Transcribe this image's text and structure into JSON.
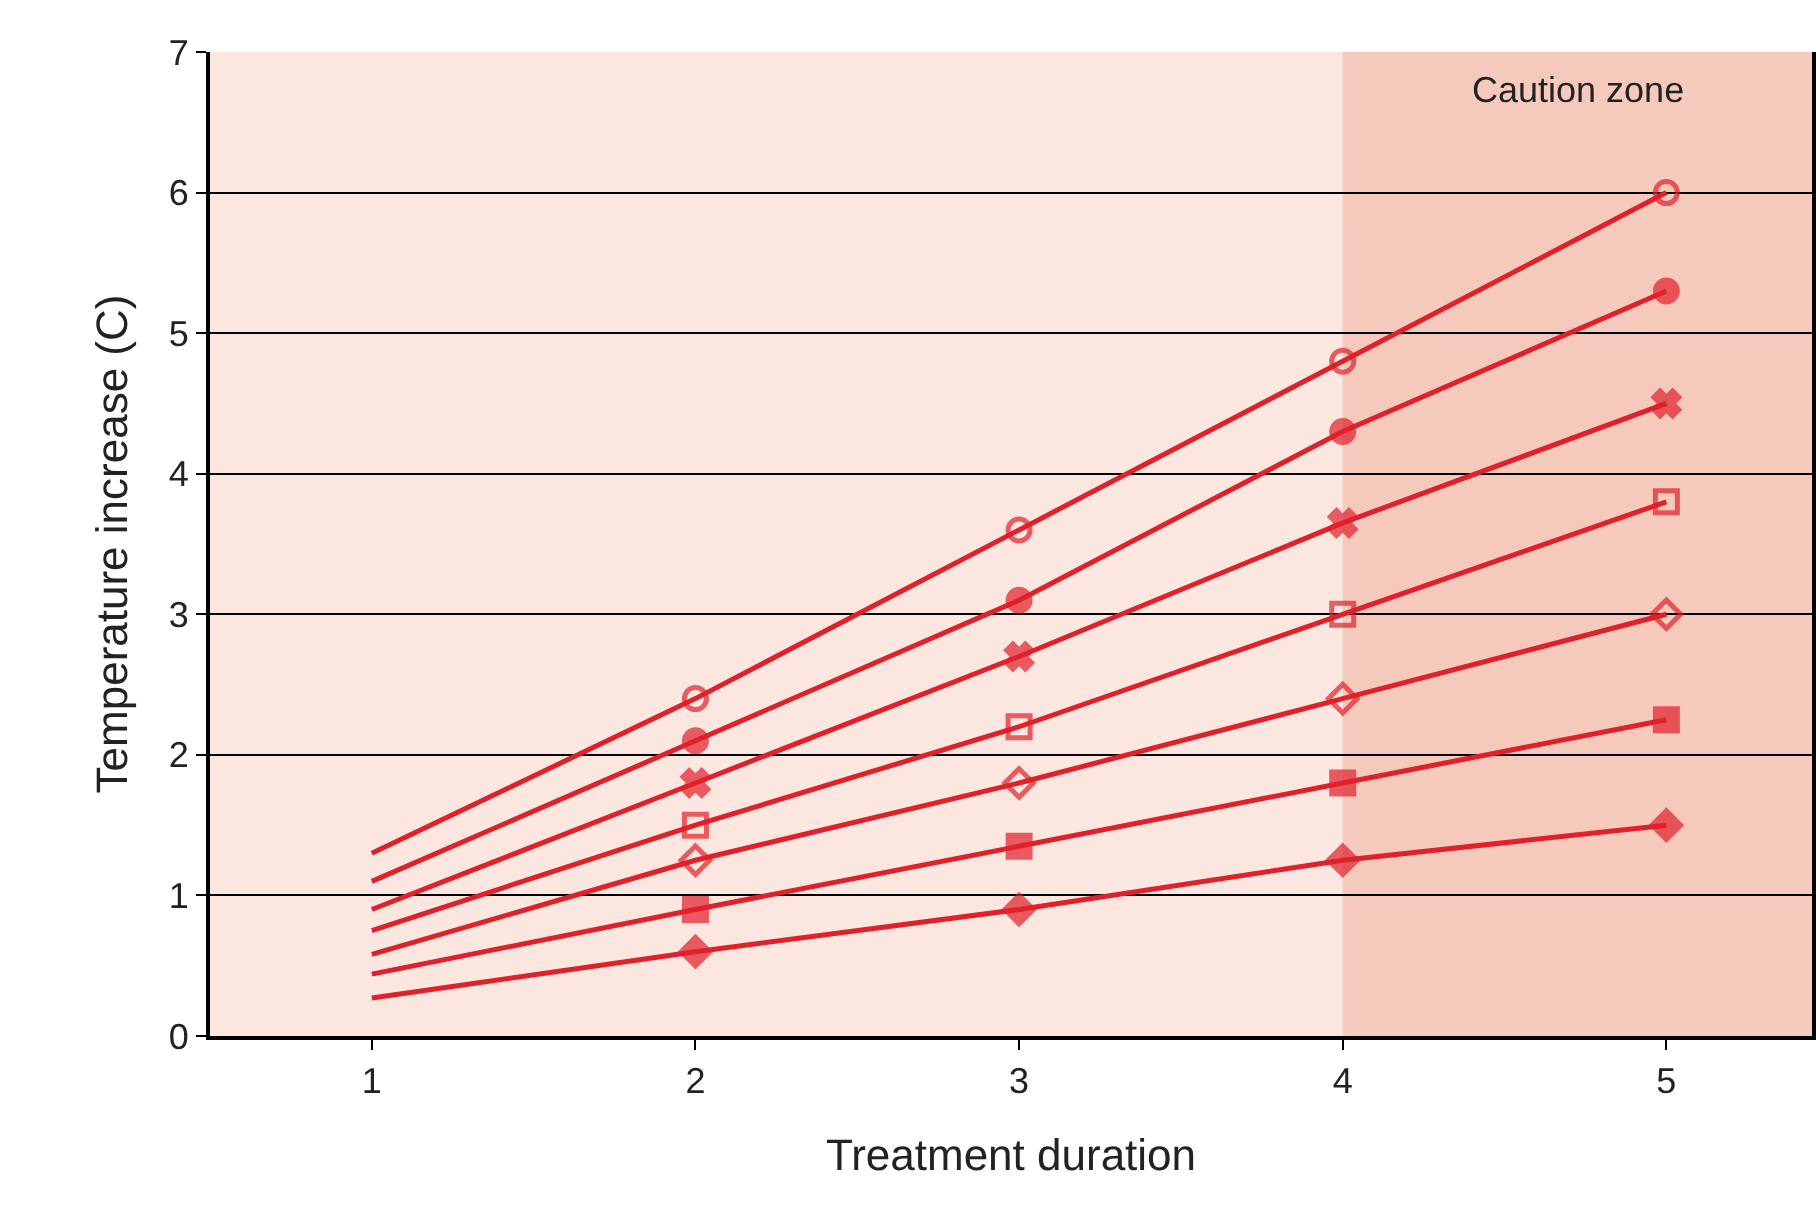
{
  "chart_data": {
    "type": "line",
    "xlabel": "Treatment duration",
    "ylabel": "Temperature increase (C)",
    "x": [
      1,
      2,
      3,
      4,
      5
    ],
    "series": [
      {
        "color": "#e0202a",
        "marker": "circle-open",
        "values": [
          1.3,
          2.4,
          3.6,
          4.8,
          6.0
        ]
      },
      {
        "color": "#e0202a",
        "marker": "circle",
        "values": [
          1.1,
          2.1,
          3.1,
          4.3,
          5.3
        ]
      },
      {
        "color": "#e0202a",
        "marker": "x",
        "values": [
          0.9,
          1.8,
          2.7,
          3.65,
          4.5
        ]
      },
      {
        "color": "#e0202a",
        "marker": "square-open",
        "values": [
          0.75,
          1.5,
          2.2,
          3.0,
          3.8
        ]
      },
      {
        "color": "#e0202a",
        "marker": "diamond-open",
        "values": [
          0.58,
          1.25,
          1.8,
          2.4,
          3.0
        ]
      },
      {
        "color": "#e0202a",
        "marker": "square",
        "values": [
          0.44,
          0.9,
          1.35,
          1.8,
          2.25
        ]
      },
      {
        "color": "#e0202a",
        "marker": "diamond",
        "values": [
          0.27,
          0.6,
          0.9,
          1.25,
          1.5
        ]
      }
    ],
    "xlim": [
      0.5,
      5.45
    ],
    "ylim": [
      0,
      7
    ],
    "xticks": [
      1,
      2,
      3,
      4,
      5
    ],
    "yticks": [
      0,
      1,
      2,
      3,
      4,
      5,
      6,
      7
    ],
    "grid": "y",
    "bands": [
      {
        "axis": "x",
        "from": 4,
        "to": 5.45,
        "label": "Caution zone",
        "color": "#f6c9bd"
      }
    ]
  }
}
